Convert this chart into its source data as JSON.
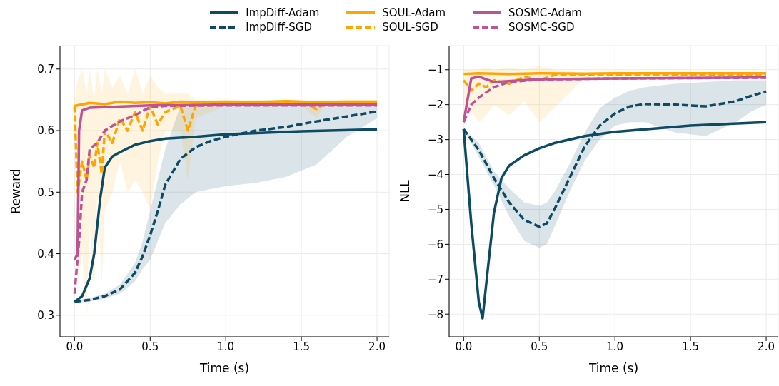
{
  "chart_data": [
    {
      "type": "line",
      "xlabel": "Time (s)",
      "ylabel": "Reward",
      "xlim": [
        -0.096,
        2.08
      ],
      "ylim": [
        0.265,
        0.738
      ],
      "xticks": [
        {
          "value": 0,
          "label": "0.0"
        },
        {
          "value": 0.5,
          "label": "0.5"
        },
        {
          "value": 1,
          "label": "1.0"
        },
        {
          "value": 1.5,
          "label": "1.5"
        },
        {
          "value": 2,
          "label": "2.0"
        }
      ],
      "yticks": [
        0.3,
        0.4,
        0.5,
        0.6,
        0.7
      ],
      "grid": true,
      "legend": "top",
      "marker": "none",
      "series": [
        {
          "name": "ImpDiff-Adam",
          "color": "#0d4a63",
          "line_style": "solid",
          "x": [
            0,
            0.05,
            0.1,
            0.13,
            0.17,
            0.2,
            0.25,
            0.3,
            0.4,
            0.5,
            0.6,
            0.8,
            1.0,
            1.5,
            2.0
          ],
          "values": [
            0.322,
            0.331,
            0.36,
            0.4,
            0.49,
            0.54,
            0.558,
            0.565,
            0.577,
            0.583,
            0.587,
            0.59,
            0.594,
            0.599,
            0.602
          ]
        },
        {
          "name": "ImpDiff-SGD",
          "color": "#0d4a63",
          "line_style": "dashed",
          "x": [
            0,
            0.1,
            0.2,
            0.3,
            0.4,
            0.45,
            0.5,
            0.55,
            0.6,
            0.7,
            0.8,
            0.9,
            1.0,
            1.2,
            1.4,
            1.6,
            1.8,
            2.0
          ],
          "values": [
            0.322,
            0.325,
            0.331,
            0.342,
            0.369,
            0.396,
            0.43,
            0.469,
            0.512,
            0.554,
            0.573,
            0.583,
            0.59,
            0.6,
            0.606,
            0.615,
            0.623,
            0.631
          ],
          "lower": [
            0.32,
            0.322,
            0.327,
            0.335,
            0.355,
            0.375,
            0.39,
            0.42,
            0.45,
            0.48,
            0.5,
            0.505,
            0.51,
            0.515,
            0.525,
            0.545,
            0.59,
            0.62
          ],
          "upper": [
            0.324,
            0.328,
            0.335,
            0.35,
            0.385,
            0.42,
            0.47,
            0.52,
            0.57,
            0.64,
            0.645,
            0.647,
            0.648,
            0.649,
            0.649,
            0.648,
            0.645,
            0.64
          ]
        },
        {
          "name": "SOUL-Adam",
          "color": "#ffa500",
          "line_style": "solid",
          "x": [
            0,
            0.1,
            0.2,
            0.3,
            0.4,
            0.5,
            0.6,
            0.7,
            0.8,
            1.0,
            1.2,
            1.4,
            1.5,
            1.6,
            1.8,
            2.0
          ],
          "values": [
            0.64,
            0.645,
            0.643,
            0.647,
            0.645,
            0.646,
            0.644,
            0.647,
            0.646,
            0.647,
            0.646,
            0.648,
            0.647,
            0.646,
            0.647,
            0.647
          ]
        },
        {
          "name": "SOUL-SGD",
          "color": "#ffa500",
          "line_style": "dashed",
          "x": [
            0,
            0.02,
            0.05,
            0.08,
            0.1,
            0.13,
            0.15,
            0.18,
            0.2,
            0.25,
            0.3,
            0.35,
            0.4,
            0.45,
            0.5,
            0.55,
            0.6,
            0.7,
            0.75,
            0.8,
            1.0,
            1.5,
            1.6,
            1.65,
            2.0
          ],
          "values": [
            0.64,
            0.5,
            0.55,
            0.52,
            0.56,
            0.54,
            0.58,
            0.53,
            0.6,
            0.58,
            0.62,
            0.6,
            0.63,
            0.6,
            0.64,
            0.61,
            0.63,
            0.64,
            0.6,
            0.64,
            0.645,
            0.645,
            0.635,
            0.645,
            0.645
          ],
          "lower": [
            0.6,
            0.35,
            0.4,
            0.3,
            0.45,
            0.33,
            0.5,
            0.35,
            0.47,
            0.5,
            0.55,
            0.5,
            0.52,
            0.5,
            0.47,
            0.55,
            0.6,
            0.6,
            0.52,
            0.62,
            0.64,
            0.64,
            0.62,
            0.64,
            0.64
          ],
          "upper": [
            0.65,
            0.68,
            0.7,
            0.66,
            0.7,
            0.65,
            0.7,
            0.66,
            0.7,
            0.67,
            0.69,
            0.66,
            0.7,
            0.66,
            0.69,
            0.67,
            0.66,
            0.66,
            0.66,
            0.65,
            0.65,
            0.65,
            0.65,
            0.65,
            0.65
          ]
        },
        {
          "name": "SOSMC-Adam",
          "color": "#bd5294",
          "line_style": "solid",
          "x": [
            0,
            0.02,
            0.03,
            0.05,
            0.1,
            0.5,
            1.0,
            2.0
          ],
          "values": [
            0.39,
            0.4,
            0.6,
            0.633,
            0.637,
            0.641,
            0.642,
            0.642
          ]
        },
        {
          "name": "SOSMC-SGD",
          "color": "#bd5294",
          "line_style": "dashed",
          "x": [
            0,
            0.03,
            0.05,
            0.08,
            0.1,
            0.15,
            0.2,
            0.3,
            0.4,
            0.5,
            0.6,
            1.0,
            2.0
          ],
          "values": [
            0.335,
            0.42,
            0.5,
            0.52,
            0.57,
            0.58,
            0.6,
            0.615,
            0.625,
            0.638,
            0.64,
            0.641,
            0.641
          ]
        }
      ]
    },
    {
      "type": "line",
      "xlabel": "Time (s)",
      "ylabel": "NLL",
      "xlim": [
        -0.096,
        2.08
      ],
      "ylim": [
        -8.65,
        -0.31
      ],
      "xticks": [
        {
          "value": 0,
          "label": "0.0"
        },
        {
          "value": 0.5,
          "label": "0.5"
        },
        {
          "value": 1,
          "label": "1.0"
        },
        {
          "value": 1.5,
          "label": "1.5"
        },
        {
          "value": 2,
          "label": "2.0"
        }
      ],
      "yticks": [
        {
          "value": -8,
          "label": "−8"
        },
        {
          "value": -7,
          "label": "−7"
        },
        {
          "value": -6,
          "label": "−6"
        },
        {
          "value": -5,
          "label": "−5"
        },
        {
          "value": -4,
          "label": "−4"
        },
        {
          "value": -3,
          "label": "−3"
        },
        {
          "value": -2,
          "label": "−2"
        },
        {
          "value": -1,
          "label": "−1"
        }
      ],
      "grid": true,
      "marker": "none",
      "series": [
        {
          "color": "#0d4a63",
          "line_style": "solid",
          "x": [
            0,
            0.05,
            0.1,
            0.125,
            0.15,
            0.2,
            0.25,
            0.3,
            0.4,
            0.5,
            0.6,
            0.8,
            1.0,
            1.5,
            2.0
          ],
          "values": [
            -2.7,
            -5.4,
            -7.65,
            -8.12,
            -7.1,
            -5.1,
            -4.1,
            -3.75,
            -3.45,
            -3.25,
            -3.1,
            -2.9,
            -2.78,
            -2.6,
            -2.5
          ]
        },
        {
          "color": "#0d4a63",
          "line_style": "dashed",
          "x": [
            0,
            0.1,
            0.2,
            0.3,
            0.4,
            0.5,
            0.55,
            0.6,
            0.7,
            0.8,
            0.9,
            1.0,
            1.1,
            1.2,
            1.4,
            1.6,
            1.8,
            1.9,
            2.0
          ],
          "values": [
            -2.7,
            -3.3,
            -4.1,
            -4.8,
            -5.3,
            -5.5,
            -5.4,
            -5.0,
            -4.1,
            -3.2,
            -2.6,
            -2.25,
            -2.05,
            -1.98,
            -2.0,
            -2.05,
            -1.9,
            -1.75,
            -1.62
          ],
          "lower": [
            -2.7,
            -3.5,
            -4.3,
            -5.2,
            -5.9,
            -6.1,
            -6.0,
            -5.5,
            -4.5,
            -3.6,
            -3.0,
            -2.6,
            -2.5,
            -2.5,
            -2.8,
            -2.9,
            -2.5,
            -2.2,
            -2.0
          ],
          "upper": [
            -2.7,
            -3.1,
            -3.9,
            -4.4,
            -4.8,
            -4.9,
            -4.8,
            -4.5,
            -3.7,
            -2.8,
            -2.1,
            -1.8,
            -1.6,
            -1.5,
            -1.4,
            -1.35,
            -1.3,
            -1.3,
            -1.3
          ]
        },
        {
          "color": "#ffa500",
          "line_style": "solid",
          "x": [
            0,
            0.1,
            0.3,
            0.5,
            0.8,
            1.0,
            1.5,
            2.0
          ],
          "values": [
            -1.12,
            -1.1,
            -1.12,
            -1.1,
            -1.11,
            -1.1,
            -1.1,
            -1.1
          ]
        },
        {
          "color": "#ffa500",
          "line_style": "dashed",
          "x": [
            0,
            0.05,
            0.1,
            0.15,
            0.2,
            0.3,
            0.4,
            0.5,
            0.6,
            0.8,
            2.0
          ],
          "values": [
            -1.3,
            -1.6,
            -1.4,
            -1.5,
            -1.3,
            -1.4,
            -1.2,
            -1.3,
            -1.15,
            -1.15,
            -1.15
          ],
          "upper": [
            -1.0,
            -1.0,
            -1.0,
            -0.95,
            -1.0,
            -0.95,
            -1.0,
            -0.9,
            -1.0,
            -1.1,
            -1.1
          ],
          "lower": [
            -2.0,
            -2.2,
            -2.5,
            -2.3,
            -2.0,
            -2.3,
            -1.9,
            -2.5,
            -2.1,
            -1.2,
            -1.2
          ]
        },
        {
          "color": "#bd5294",
          "line_style": "solid",
          "x": [
            0,
            0.05,
            0.1,
            0.2,
            0.5,
            1.0,
            2.0
          ],
          "values": [
            -2.5,
            -1.25,
            -1.2,
            -1.35,
            -1.27,
            -1.25,
            -1.22
          ]
        },
        {
          "color": "#bd5294",
          "line_style": "dashed",
          "x": [
            0,
            0.05,
            0.1,
            0.2,
            0.3,
            0.5,
            1.0,
            2.0
          ],
          "values": [
            -2.5,
            -2.0,
            -1.8,
            -1.5,
            -1.35,
            -1.28,
            -1.25,
            -1.23
          ]
        }
      ]
    }
  ]
}
